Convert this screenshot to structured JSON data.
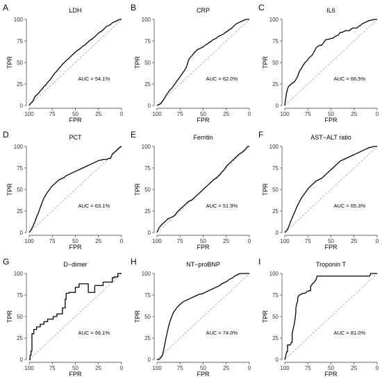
{
  "chart_data": [
    {
      "letter": "A",
      "title": "LDH",
      "auc_text": "AUC = 54.1%",
      "type": "line",
      "xlabel": "FPR",
      "ylabel": "TPR",
      "xticks": [
        "100",
        "75",
        "50",
        "25",
        "0"
      ],
      "yticks": [
        "0",
        "25",
        "50",
        "75",
        "100"
      ],
      "xlim": [
        100,
        0
      ],
      "ylim": [
        0,
        100
      ],
      "series": [
        {
          "x_specificity": [
            100,
            98,
            96,
            94,
            92,
            90,
            88,
            86,
            84,
            82,
            80,
            78,
            76,
            74,
            72,
            70,
            68,
            66,
            64,
            62,
            60,
            58,
            56,
            54,
            52,
            50,
            48,
            46,
            44,
            42,
            40,
            38,
            36,
            34,
            32,
            30,
            28,
            26,
            24,
            22,
            20,
            18,
            16,
            14,
            12,
            10,
            8,
            6,
            4,
            2,
            0
          ],
          "y": [
            0,
            3,
            5,
            10,
            12,
            14,
            17,
            19,
            22,
            24,
            27,
            29,
            32,
            35,
            38,
            40,
            43,
            45,
            48,
            50,
            52,
            54,
            56,
            58,
            60,
            62,
            64,
            65,
            67,
            69,
            70,
            72,
            74,
            76,
            77,
            79,
            81,
            83,
            85,
            86,
            88,
            90,
            92,
            93,
            94,
            96,
            97,
            98,
            99,
            100,
            100
          ]
        }
      ]
    },
    {
      "letter": "B",
      "title": "CRP",
      "auc_text": "AUC = 62.0%",
      "type": "line",
      "xlabel": "FPR",
      "ylabel": "TPR",
      "xticks": [
        "100",
        "75",
        "50",
        "25",
        "0"
      ],
      "yticks": [
        "0",
        "25",
        "50",
        "75",
        "100"
      ],
      "xlim": [
        100,
        0
      ],
      "ylim": [
        0,
        100
      ],
      "series": [
        {
          "x_specificity": [
            100,
            98,
            96,
            94,
            92,
            90,
            88,
            86,
            84,
            82,
            80,
            78,
            76,
            74,
            72,
            70,
            68,
            66,
            64,
            62,
            60,
            58,
            56,
            54,
            52,
            50,
            48,
            46,
            44,
            42,
            40,
            38,
            36,
            34,
            32,
            30,
            28,
            26,
            24,
            22,
            20,
            18,
            16,
            14,
            12,
            10,
            8,
            6,
            4,
            2,
            0
          ],
          "y": [
            0,
            1,
            2,
            5,
            8,
            12,
            15,
            18,
            20,
            23,
            26,
            29,
            32,
            35,
            38,
            41,
            45,
            52,
            56,
            58,
            61,
            63,
            65,
            66,
            67,
            68,
            70,
            71,
            73,
            74,
            76,
            77,
            78,
            80,
            81,
            82,
            83,
            85,
            86,
            88,
            89,
            91,
            93,
            95,
            96,
            97,
            98,
            99,
            100,
            100,
            100
          ]
        }
      ]
    },
    {
      "letter": "C",
      "title": "IL6",
      "auc_text": "AUC = 66.5%",
      "type": "line",
      "xlabel": "FPR",
      "ylabel": "TPR",
      "xticks": [
        "100",
        "75",
        "50",
        "25",
        "0"
      ],
      "yticks": [
        "0",
        "25",
        "50",
        "75",
        "100"
      ],
      "xlim": [
        100,
        0
      ],
      "ylim": [
        0,
        100
      ],
      "series": [
        {
          "x_specificity": [
            100,
            99,
            98,
            97,
            96,
            94,
            92,
            90,
            88,
            86,
            84,
            82,
            80,
            78,
            76,
            74,
            72,
            70,
            68,
            66,
            64,
            62,
            60,
            58,
            56,
            54,
            52,
            50,
            48,
            46,
            44,
            42,
            40,
            38,
            36,
            34,
            32,
            30,
            28,
            26,
            24,
            22,
            20,
            18,
            16,
            14,
            12,
            10,
            8,
            6,
            4,
            2,
            0
          ],
          "y": [
            0,
            8,
            15,
            19,
            22,
            24,
            26,
            27,
            30,
            34,
            40,
            43,
            47,
            50,
            52,
            55,
            57,
            59,
            63,
            67,
            69,
            70,
            70,
            73,
            76,
            77,
            77,
            78,
            78,
            80,
            81,
            82,
            85,
            85,
            86,
            87,
            87,
            87,
            89,
            90,
            90,
            90,
            92,
            93,
            95,
            96,
            97,
            98,
            99,
            99,
            100,
            100,
            100
          ]
        }
      ]
    },
    {
      "letter": "D",
      "title": "PCT",
      "auc_text": "AUC = 63.1%",
      "type": "line",
      "xlabel": "FPR",
      "ylabel": "TPR",
      "xticks": [
        "100",
        "75",
        "50",
        "25",
        "0"
      ],
      "yticks": [
        "0",
        "25",
        "50",
        "75",
        "100"
      ],
      "xlim": [
        100,
        0
      ],
      "ylim": [
        0,
        100
      ],
      "series": [
        {
          "x_specificity": [
            100,
            98,
            96,
            94,
            92,
            90,
            88,
            86,
            84,
            82,
            80,
            78,
            76,
            74,
            72,
            70,
            68,
            66,
            64,
            62,
            60,
            58,
            56,
            54,
            52,
            50,
            48,
            46,
            44,
            42,
            40,
            38,
            36,
            34,
            32,
            30,
            28,
            26,
            24,
            22,
            20,
            18,
            16,
            14,
            12,
            10,
            8,
            6,
            4,
            2,
            0
          ],
          "y": [
            0,
            3,
            7,
            12,
            18,
            23,
            29,
            35,
            40,
            44,
            47,
            50,
            53,
            55,
            57,
            59,
            61,
            62,
            63,
            64,
            66,
            67,
            68,
            69,
            70,
            71,
            72,
            73,
            74,
            75,
            76,
            77,
            78,
            79,
            80,
            81,
            82,
            83,
            84,
            84,
            85,
            85,
            85,
            86,
            86,
            91,
            93,
            95,
            97,
            99,
            100
          ]
        }
      ]
    },
    {
      "letter": "E",
      "title": "Ferritin",
      "auc_text": "AUC = 51.9%",
      "type": "line",
      "xlabel": "FPR",
      "ylabel": "TPR",
      "xticks": [
        "100",
        "75",
        "50",
        "25",
        "0"
      ],
      "yticks": [
        "0",
        "25",
        "50",
        "75",
        "100"
      ],
      "xlim": [
        100,
        0
      ],
      "ylim": [
        0,
        100
      ],
      "series": [
        {
          "x_specificity": [
            100,
            98,
            96,
            94,
            92,
            90,
            88,
            86,
            84,
            82,
            80,
            78,
            76,
            74,
            72,
            70,
            68,
            66,
            64,
            62,
            60,
            58,
            56,
            54,
            52,
            50,
            48,
            46,
            44,
            42,
            40,
            38,
            36,
            34,
            32,
            30,
            28,
            26,
            24,
            22,
            20,
            18,
            16,
            14,
            12,
            10,
            8,
            6,
            4,
            2,
            0
          ],
          "y": [
            0,
            5,
            8,
            10,
            12,
            14,
            16,
            17,
            18,
            19,
            21,
            24,
            26,
            28,
            30,
            32,
            34,
            36,
            37,
            38,
            40,
            42,
            44,
            46,
            48,
            50,
            52,
            54,
            56,
            58,
            60,
            62,
            63,
            65,
            67,
            70,
            72,
            75,
            78,
            80,
            82,
            84,
            86,
            88,
            90,
            92,
            93,
            95,
            97,
            100,
            100
          ]
        }
      ]
    },
    {
      "letter": "F",
      "title": "AST−ALT ratio",
      "auc_text": "AUC = 65.3%",
      "type": "line",
      "xlabel": "FPR",
      "ylabel": "TPR",
      "xticks": [
        "100",
        "75",
        "50",
        "25",
        "0"
      ],
      "yticks": [
        "0",
        "25",
        "50",
        "75",
        "100"
      ],
      "xlim": [
        100,
        0
      ],
      "ylim": [
        0,
        100
      ],
      "series": [
        {
          "x_specificity": [
            100,
            98,
            96,
            94,
            92,
            90,
            88,
            86,
            84,
            82,
            80,
            78,
            76,
            74,
            72,
            70,
            68,
            66,
            64,
            62,
            60,
            58,
            56,
            54,
            52,
            50,
            48,
            46,
            44,
            42,
            40,
            38,
            36,
            34,
            32,
            30,
            28,
            26,
            24,
            22,
            20,
            18,
            16,
            14,
            12,
            10,
            8,
            6,
            4,
            2,
            0
          ],
          "y": [
            0,
            2,
            6,
            12,
            17,
            22,
            27,
            32,
            36,
            40,
            43,
            46,
            49,
            52,
            54,
            56,
            58,
            60,
            61,
            62,
            63,
            65,
            67,
            69,
            71,
            73,
            75,
            77,
            79,
            81,
            83,
            84,
            85,
            86,
            87,
            88,
            89,
            90,
            91,
            92,
            93,
            94,
            95,
            96,
            97,
            98,
            99,
            99,
            100,
            100,
            100
          ]
        }
      ]
    },
    {
      "letter": "G",
      "title": "D−dimer",
      "auc_text": "AUC = 66.1%",
      "type": "line",
      "xlabel": "FPR",
      "ylabel": "TPR",
      "xticks": [
        "100",
        "75",
        "50",
        "25",
        "0"
      ],
      "yticks": [
        "0",
        "25",
        "50",
        "75",
        "100"
      ],
      "xlim": [
        100,
        0
      ],
      "ylim": [
        0,
        100
      ],
      "series": [
        {
          "x_specificity": [
            100,
            99,
            99,
            98,
            98,
            97,
            97,
            95,
            95,
            92,
            92,
            88,
            88,
            84,
            84,
            80,
            80,
            74,
            74,
            70,
            70,
            64,
            64,
            61,
            61,
            60,
            60,
            57,
            57,
            50,
            50,
            46,
            46,
            36,
            36,
            29,
            29,
            20,
            20,
            10,
            10,
            8,
            8,
            4,
            4,
            0,
            0
          ],
          "y": [
            0,
            0,
            5,
            5,
            10,
            10,
            30,
            30,
            35,
            35,
            38,
            38,
            41,
            41,
            44,
            44,
            47,
            47,
            50,
            50,
            53,
            53,
            60,
            60,
            70,
            70,
            77,
            77,
            78,
            78,
            84,
            84,
            88,
            88,
            78,
            78,
            86,
            86,
            90,
            90,
            95,
            95,
            96,
            96,
            100,
            100,
            100
          ]
        }
      ]
    },
    {
      "letter": "H",
      "title": "NT−proBNP",
      "auc_text": "AUC = 74.0%",
      "type": "line",
      "xlabel": "FPR",
      "ylabel": "TPR",
      "xticks": [
        "100",
        "75",
        "50",
        "25",
        "0"
      ],
      "yticks": [
        "0",
        "25",
        "50",
        "75",
        "100"
      ],
      "xlim": [
        100,
        0
      ],
      "ylim": [
        0,
        100
      ],
      "series": [
        {
          "x_specificity": [
            100,
            98,
            96,
            94,
            92,
            90,
            88,
            86,
            84,
            82,
            80,
            78,
            76,
            74,
            72,
            70,
            68,
            66,
            64,
            62,
            60,
            58,
            56,
            54,
            52,
            50,
            48,
            46,
            44,
            42,
            40,
            38,
            36,
            34,
            32,
            30,
            28,
            26,
            24,
            22,
            20,
            18,
            16,
            14,
            12,
            10,
            8,
            6,
            4,
            2,
            0
          ],
          "y": [
            0,
            0,
            2,
            5,
            15,
            26,
            36,
            44,
            50,
            55,
            58,
            61,
            63,
            65,
            67,
            68,
            69,
            70,
            71,
            72,
            73,
            74,
            75,
            76,
            76,
            77,
            78,
            79,
            80,
            81,
            82,
            83,
            84,
            85,
            86,
            88,
            89,
            90,
            91,
            93,
            94,
            95,
            97,
            98,
            99,
            100,
            100,
            100,
            100,
            100,
            100
          ]
        }
      ]
    },
    {
      "letter": "I",
      "title": "Troponin T",
      "auc_text": "AUC = 81.0%",
      "type": "line",
      "xlabel": "FPR",
      "ylabel": "TPR",
      "xticks": [
        "100",
        "75",
        "50",
        "25",
        "0"
      ],
      "yticks": [
        "0",
        "25",
        "50",
        "75",
        "100"
      ],
      "xlim": [
        100,
        0
      ],
      "ylim": [
        0,
        100
      ],
      "series": [
        {
          "x_specificity": [
            100,
            99,
            98,
            97,
            97,
            96,
            95,
            94,
            93,
            92,
            92,
            91,
            90,
            89,
            88,
            88,
            87,
            86,
            86,
            85,
            84,
            82,
            80,
            78,
            76,
            74,
            72,
            72,
            70,
            68,
            66,
            65,
            62,
            60,
            56,
            52,
            48,
            44,
            40,
            36,
            32,
            28,
            24,
            20,
            16,
            12,
            8,
            7,
            4,
            0
          ],
          "y": [
            0,
            4,
            9,
            9,
            17,
            17,
            17,
            17,
            20,
            20,
            30,
            35,
            40,
            46,
            55,
            60,
            65,
            68,
            72,
            74,
            75,
            76,
            77,
            77,
            79,
            80,
            80,
            85,
            88,
            90,
            93,
            97,
            97,
            97,
            97,
            97,
            97,
            97,
            97,
            97,
            97,
            97,
            97,
            97,
            97,
            97,
            97,
            100,
            100,
            100
          ]
        }
      ]
    }
  ]
}
